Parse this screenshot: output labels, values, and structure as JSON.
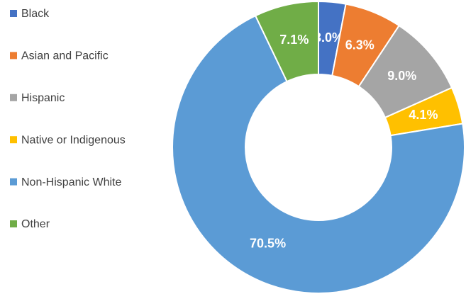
{
  "chart_data": {
    "type": "donut",
    "categories": [
      "Black",
      "Asian and Pacific",
      "Hispanic",
      "Native or Indigenous",
      "Non-Hispanic White",
      "Other"
    ],
    "values": [
      3.0,
      6.3,
      9.0,
      4.1,
      70.5,
      7.1
    ],
    "value_labels": [
      "3.0%",
      "6.3%",
      "9.0%",
      "4.1%",
      "70.5%",
      "7.1%"
    ],
    "colors": [
      "#4472c4",
      "#ed7d31",
      "#a5a5a5",
      "#ffc000",
      "#5b9bd5",
      "#70ad47"
    ],
    "legend": "left"
  }
}
